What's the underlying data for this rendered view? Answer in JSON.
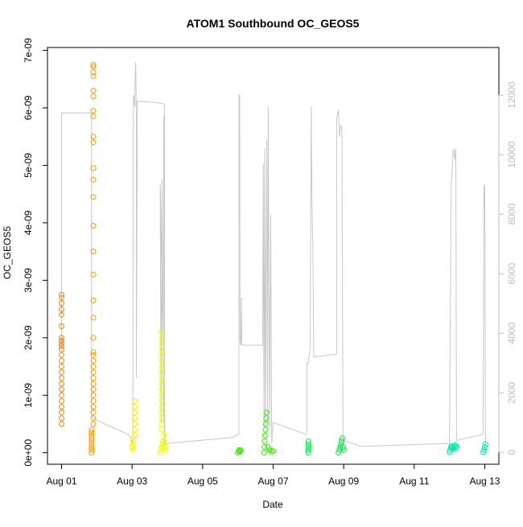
{
  "chart_data": {
    "type": "scatter",
    "title": "ATOM1 Southbound OC_GEOS5",
    "xlabel": "Date",
    "ylabel": "OC_GEOS5",
    "x_ticks": [
      "Aug 01",
      "Aug 03",
      "Aug 05",
      "Aug 07",
      "Aug 09",
      "Aug 11",
      "Aug 13"
    ],
    "x_tick_days": [
      1,
      3,
      5,
      7,
      9,
      11,
      13
    ],
    "xlim": [
      0.6,
      13.4
    ],
    "y_ticks": [
      "0e+00",
      "1e-09",
      "2e-09",
      "3e-09",
      "4e-09",
      "5e-09",
      "6e-09",
      "7e-09"
    ],
    "y_tick_values": [
      0,
      1e-09,
      2e-09,
      3e-09,
      4e-09,
      5e-09,
      6e-09,
      7e-09
    ],
    "ylim": [
      -2e-10,
      7.05e-09
    ],
    "y2_ticks": [
      "0",
      "2000",
      "4000",
      "6000",
      "8000",
      "10000",
      "12000"
    ],
    "y2_tick_values": [
      0,
      2000,
      4000,
      6000,
      8000,
      10000,
      12000
    ],
    "y2lim": [
      -400,
      13600
    ],
    "altitude_color": "#c8c8c8",
    "altitude_trace": [
      [
        1.0,
        3500
      ],
      [
        1.0,
        11400
      ],
      [
        1.48,
        11400
      ],
      [
        1.48,
        11400
      ],
      [
        1.85,
        11400
      ],
      [
        1.85,
        1200
      ],
      [
        1.95,
        1100
      ],
      [
        2.9,
        600
      ],
      [
        3.02,
        300
      ],
      [
        3.02,
        1700
      ],
      [
        3.04,
        12000
      ],
      [
        3.06,
        11800
      ],
      [
        3.08,
        11600
      ],
      [
        3.08,
        11700
      ],
      [
        3.08,
        12400
      ],
      [
        3.1,
        13100
      ],
      [
        3.12,
        11700
      ],
      [
        3.12,
        2500
      ],
      [
        3.15,
        11800
      ],
      [
        3.65,
        11750
      ],
      [
        3.92,
        11700
      ],
      [
        3.92,
        200
      ],
      [
        3.8,
        9000
      ],
      [
        3.82,
        1000
      ],
      [
        3.85,
        9200
      ],
      [
        3.88,
        1100
      ],
      [
        3.9,
        11300
      ],
      [
        3.93,
        300
      ],
      [
        4.0,
        300
      ],
      [
        5.85,
        500
      ],
      [
        6.0,
        600
      ],
      [
        6.03,
        600
      ],
      [
        6.03,
        12000
      ],
      [
        6.05,
        12000
      ],
      [
        6.06,
        3800
      ],
      [
        6.08,
        3600
      ],
      [
        6.1,
        5200
      ],
      [
        6.11,
        3600
      ],
      [
        6.7,
        3600
      ],
      [
        6.72,
        9700
      ],
      [
        6.74,
        800
      ],
      [
        6.76,
        10200
      ],
      [
        6.78,
        900
      ],
      [
        6.82,
        10500
      ],
      [
        6.84,
        1000
      ],
      [
        6.86,
        11600
      ],
      [
        6.9,
        800
      ],
      [
        6.93,
        8000
      ],
      [
        6.96,
        300
      ],
      [
        7.0,
        1000
      ],
      [
        7.94,
        600
      ],
      [
        7.96,
        800
      ],
      [
        7.96,
        3000
      ],
      [
        8.0,
        3000
      ],
      [
        8.05,
        3500
      ],
      [
        8.08,
        11600
      ],
      [
        8.1,
        8500
      ],
      [
        8.13,
        6500
      ],
      [
        8.15,
        3200
      ],
      [
        8.8,
        3300
      ],
      [
        8.8,
        11200
      ],
      [
        8.85,
        11500
      ],
      [
        8.88,
        10600
      ],
      [
        8.92,
        11000
      ],
      [
        8.95,
        10800
      ],
      [
        8.98,
        500
      ],
      [
        9.0,
        400
      ],
      [
        9.5,
        200
      ],
      [
        12.0,
        300
      ],
      [
        12.05,
        9100
      ],
      [
        12.08,
        9500
      ],
      [
        12.1,
        10100
      ],
      [
        12.12,
        10200
      ],
      [
        12.15,
        9800
      ],
      [
        12.18,
        10200
      ],
      [
        12.2,
        400
      ],
      [
        12.95,
        600
      ],
      [
        12.98,
        9000
      ],
      [
        13.0,
        8900
      ],
      [
        13.02,
        200
      ]
    ],
    "series": [
      {
        "color": "#ff8000",
        "points": [
          [
            1.0,
            5e-10
          ],
          [
            1.0,
            6e-10
          ],
          [
            1.0,
            7e-10
          ],
          [
            1.0,
            8e-10
          ],
          [
            1.0,
            9e-10
          ],
          [
            1.0,
            1e-09
          ],
          [
            1.0,
            1.1e-09
          ],
          [
            1.0,
            1.2e-09
          ],
          [
            1.0,
            1.3e-09
          ],
          [
            1.0,
            1.4e-09
          ],
          [
            1.0,
            1.5e-09
          ],
          [
            1.0,
            1.6e-09
          ],
          [
            1.0,
            1.7e-09
          ],
          [
            1.0,
            1.8e-09
          ],
          [
            1.0,
            1.85e-09
          ],
          [
            1.0,
            1.9e-09
          ],
          [
            1.0,
            1.95e-09
          ],
          [
            1.0,
            2e-09
          ],
          [
            1.0,
            2.2e-09
          ],
          [
            1.0,
            2.4e-09
          ],
          [
            1.0,
            2.5e-09
          ],
          [
            1.0,
            2.6e-09
          ],
          [
            1.0,
            2.7e-09
          ],
          [
            1.0,
            2.75e-09
          ]
        ]
      },
      {
        "color": "#ff9900",
        "points": [
          [
            1.85,
            0.0
          ],
          [
            1.85,
            5e-11
          ],
          [
            1.85,
            1e-10
          ],
          [
            1.85,
            1.5e-10
          ],
          [
            1.85,
            2e-10
          ],
          [
            1.85,
            2.5e-10
          ],
          [
            1.85,
            3e-10
          ],
          [
            1.85,
            3.5e-10
          ],
          [
            1.85,
            4e-10
          ],
          [
            1.9,
            5e-10
          ],
          [
            1.9,
            6e-10
          ],
          [
            1.9,
            7e-10
          ],
          [
            1.9,
            8e-10
          ],
          [
            1.9,
            9e-10
          ],
          [
            1.9,
            1e-09
          ],
          [
            1.9,
            1.1e-09
          ],
          [
            1.9,
            1.2e-09
          ],
          [
            1.9,
            1.3e-09
          ],
          [
            1.9,
            1.4e-09
          ],
          [
            1.9,
            1.5e-09
          ],
          [
            1.9,
            1.6e-09
          ],
          [
            1.9,
            1.7e-09
          ],
          [
            1.9,
            1.75e-09
          ],
          [
            1.9,
            2e-09
          ],
          [
            1.9,
            2.35e-09
          ],
          [
            1.9,
            2.65e-09
          ],
          [
            1.9,
            3.1e-09
          ],
          [
            1.9,
            3.5e-09
          ],
          [
            1.9,
            3.95e-09
          ],
          [
            1.9,
            4.45e-09
          ],
          [
            1.9,
            4.75e-09
          ],
          [
            1.9,
            4.95e-09
          ],
          [
            1.9,
            5.4e-09
          ],
          [
            1.9,
            5.5e-09
          ],
          [
            1.9,
            5.85e-09
          ],
          [
            1.9,
            5.95e-09
          ],
          [
            1.9,
            6.2e-09
          ],
          [
            1.9,
            6.3e-09
          ],
          [
            1.9,
            6.55e-09
          ],
          [
            1.9,
            6.62e-09
          ],
          [
            1.9,
            6.72e-09
          ],
          [
            1.9,
            6.75e-09
          ]
        ]
      },
      {
        "color": "#ffee00",
        "points": [
          [
            3.02,
            5e-11
          ],
          [
            3.02,
            1e-10
          ],
          [
            3.02,
            1.5e-10
          ],
          [
            3.02,
            2e-10
          ],
          [
            3.02,
            2.5e-10
          ],
          [
            3.08,
            3e-10
          ],
          [
            3.08,
            4e-10
          ],
          [
            3.08,
            5e-10
          ],
          [
            3.08,
            6e-10
          ],
          [
            3.08,
            7e-10
          ],
          [
            3.08,
            8e-10
          ],
          [
            3.08,
            9e-10
          ]
        ]
      },
      {
        "color": "#eeff00",
        "points": [
          [
            3.8,
            0.0
          ],
          [
            3.82,
            5e-11
          ],
          [
            3.84,
            1e-10
          ],
          [
            3.86,
            1.5e-10
          ],
          [
            3.88,
            2e-10
          ],
          [
            3.9,
            3e-10
          ],
          [
            3.84,
            4e-10
          ],
          [
            3.84,
            5e-10
          ],
          [
            3.84,
            6e-10
          ],
          [
            3.84,
            7e-10
          ],
          [
            3.84,
            8e-10
          ],
          [
            3.84,
            9e-10
          ],
          [
            3.84,
            1e-09
          ],
          [
            3.84,
            1.1e-09
          ],
          [
            3.84,
            1.2e-09
          ],
          [
            3.84,
            1.3e-09
          ],
          [
            3.84,
            1.4e-09
          ],
          [
            3.84,
            1.5e-09
          ],
          [
            3.84,
            1.6e-09
          ],
          [
            3.84,
            1.7e-09
          ],
          [
            3.84,
            1.8e-09
          ],
          [
            3.84,
            1.9e-09
          ],
          [
            3.84,
            2e-09
          ],
          [
            3.84,
            2.1e-09
          ],
          [
            3.92,
            2e-10
          ],
          [
            3.94,
            1e-10
          ],
          [
            3.96,
            5e-11
          ]
        ]
      },
      {
        "color": "#33ee00",
        "points": [
          [
            6.0,
            0.0
          ],
          [
            6.02,
            3e-11
          ],
          [
            6.04,
            5e-11
          ],
          [
            6.06,
            2e-11
          ],
          [
            6.08,
            4e-11
          ],
          [
            6.74,
            0.0
          ],
          [
            6.75,
            1e-10
          ],
          [
            6.76,
            2e-10
          ],
          [
            6.77,
            3e-10
          ],
          [
            6.78,
            4e-10
          ],
          [
            6.79,
            5e-10
          ],
          [
            6.8,
            6e-10
          ],
          [
            6.81,
            7e-10
          ],
          [
            6.85,
            1e-10
          ],
          [
            6.9,
            5e-11
          ],
          [
            6.95,
            2e-11
          ],
          [
            7.0,
            3e-11
          ]
        ]
      },
      {
        "color": "#00ee44",
        "points": [
          [
            8.0,
            0.0
          ],
          [
            8.0,
            5e-11
          ],
          [
            8.0,
            1e-10
          ],
          [
            8.0,
            1.5e-10
          ],
          [
            8.0,
            2e-10
          ],
          [
            8.85,
            0.0
          ],
          [
            8.88,
            5e-11
          ],
          [
            8.9,
            1e-10
          ],
          [
            8.92,
            1.5e-10
          ],
          [
            8.94,
            2e-10
          ],
          [
            8.96,
            2.5e-10
          ],
          [
            8.98,
            1e-10
          ],
          [
            9.0,
            5e-11
          ]
        ]
      },
      {
        "color": "#00eeaa",
        "points": [
          [
            12.0,
            1e-11
          ],
          [
            12.02,
            5e-11
          ],
          [
            12.04,
            1e-10
          ],
          [
            12.06,
            1.2e-10
          ],
          [
            12.08,
            8e-11
          ],
          [
            12.1,
            1e-10
          ],
          [
            12.12,
            6e-11
          ],
          [
            12.14,
            1.1e-10
          ],
          [
            12.16,
            1.3e-10
          ],
          [
            12.18,
            9e-11
          ],
          [
            12.2,
            1e-10
          ],
          [
            12.96,
            1e-11
          ],
          [
            12.98,
            5e-11
          ],
          [
            13.0,
            1e-10
          ],
          [
            13.02,
            1.5e-10
          ]
        ]
      }
    ]
  }
}
